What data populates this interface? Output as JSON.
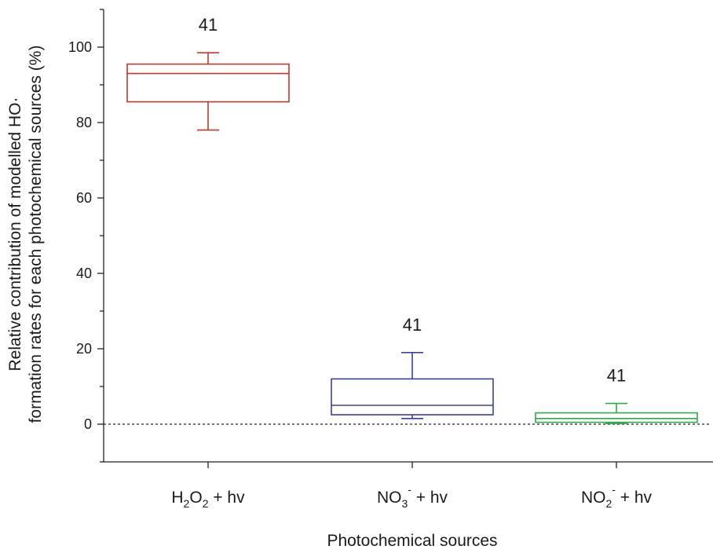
{
  "chart_data": {
    "type": "box",
    "xlabel": "Photochemical sources",
    "ylabel_line1": "Relative contribution of modelled HO·",
    "ylabel_line2": "formation rates for each photochemical sources (%)",
    "ylim": [
      -10,
      110
    ],
    "yticks": [
      0,
      20,
      40,
      60,
      80,
      100
    ],
    "yticks_minor": [
      -10,
      10,
      30,
      50,
      70,
      90,
      110
    ],
    "reference_line": 0,
    "grid": false,
    "categories": [
      {
        "base": "H",
        "sub1": "2",
        "mid": "O",
        "sub2": "2",
        "tail": " + hv"
      },
      {
        "base": "NO",
        "sub1": "3",
        "sup": "-",
        "tail": " + hv"
      },
      {
        "base": "NO",
        "sub1": "2",
        "sup": "-",
        "tail": " + hv"
      }
    ],
    "boxes": [
      {
        "color": "#c0392b",
        "whisker_low": 78,
        "q1": 85.5,
        "median": 93,
        "q3": 95.5,
        "whisker_high": 98.5,
        "n": "41"
      },
      {
        "color": "#3c3fa0",
        "whisker_low": 1.5,
        "q1": 2.5,
        "median": 5,
        "q3": 12,
        "whisker_high": 19,
        "n": "41"
      },
      {
        "color": "#2eaa4a",
        "whisker_low": 0.2,
        "q1": 0.5,
        "median": 1.5,
        "q3": 3,
        "whisker_high": 5.5,
        "n": "41"
      }
    ]
  }
}
